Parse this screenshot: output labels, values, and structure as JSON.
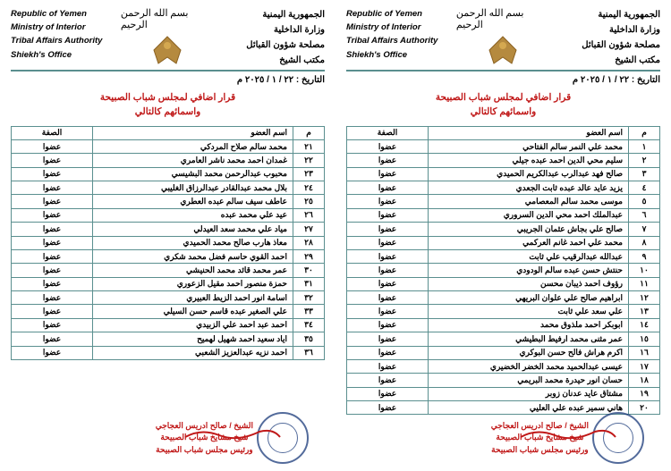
{
  "header_en": {
    "line1": "Republic of Yemen",
    "line2": "Ministry of Interior",
    "line3": "Tribal Affairs Authority",
    "line4": "Shiekh's Office"
  },
  "header_ar": {
    "line1": "الجمهورية اليمنية",
    "line2": "وزارة الداخلية",
    "line3": "مصلحة شؤون القبائل",
    "line4": "مكتب الشيخ"
  },
  "bismillah": "بسم الله الرحمن الرحيم",
  "date": "التاريخ : ٢٢ / ١ / ٢٠٢٥ م",
  "title_line1": "قرار اضافي لمجلس شباب الصبيحة",
  "title_line2": "واسمائهم كالتالي",
  "columns": {
    "num": "م",
    "name": "اسم العضو",
    "role": "الصفة"
  },
  "role_member": "عضوا",
  "signature": {
    "line1": "الشيخ / صالح ادريس العجاجي",
    "line2": "شيخ مشايخ شباب الصبيحة",
    "line3": "ورئيس مجلس شباب الصبيحة"
  },
  "right_page_rows": [
    {
      "n": "١",
      "name": "محمد علي النمر سالم الفتاحي"
    },
    {
      "n": "٢",
      "name": "سليم محي الدين احمد عبده جيلي"
    },
    {
      "n": "٣",
      "name": "صالح فهد عبدالرب عبدالكريم الحميدي"
    },
    {
      "n": "٤",
      "name": "يزيد عايد عالد عبده ثابت الجعدي"
    },
    {
      "n": "٥",
      "name": "موسى محمد سالم المعصامي"
    },
    {
      "n": "٦",
      "name": "عبدالملك احمد محي الدين السروري"
    },
    {
      "n": "٧",
      "name": "صالح علي بجاش عثمان الجريبي"
    },
    {
      "n": "٨",
      "name": "محمد علي احمد غانم العركمي"
    },
    {
      "n": "٩",
      "name": "عبدالله عبدالرقيب علي ثابت"
    },
    {
      "n": "١٠",
      "name": "حنتش حسن عبده سالم الودودي"
    },
    {
      "n": "١١",
      "name": "رؤوف احمد ذيبان محسن"
    },
    {
      "n": "١٢",
      "name": "ابراهيم صالح علي علوان البريهي"
    },
    {
      "n": "١٣",
      "name": "علي سعد علي ثابت"
    },
    {
      "n": "١٤",
      "name": "ابوبكر احمد ملذوق محمد"
    },
    {
      "n": "١٥",
      "name": "عمر مثنى محمد ارفيط البطيشي"
    },
    {
      "n": "١٦",
      "name": "اكرم هراش فالح حسن البوكري"
    },
    {
      "n": "١٧",
      "name": "عيسى عبدالحميد محمد الخضر الخضيري"
    },
    {
      "n": "١٨",
      "name": "حسان انور حيدرة محمد البريمي"
    },
    {
      "n": "١٩",
      "name": "مشتاق عايد عدنان زوبر"
    },
    {
      "n": "٢٠",
      "name": "هاني سمير عبده علي العليي"
    }
  ],
  "left_page_rows": [
    {
      "n": "٢١",
      "name": "محمد سالم صلاح المردكي"
    },
    {
      "n": "٢٢",
      "name": "غمدان احمد محمد ناشر العامري"
    },
    {
      "n": "٢٣",
      "name": "محبوب عبدالرحمن محمد البشيسي"
    },
    {
      "n": "٢٤",
      "name": "بلال محمد عبدالقادر عبدالرزاق الغليبي"
    },
    {
      "n": "٢٥",
      "name": "عاطف سيف سالم عبده العطري"
    },
    {
      "n": "٢٦",
      "name": "عيد علي محمد عبده"
    },
    {
      "n": "٢٧",
      "name": "مياد علي محمد سعد العيدلي"
    },
    {
      "n": "٢٨",
      "name": "معاذ هارب صالح محمد الحميدي"
    },
    {
      "n": "٢٩",
      "name": "احمد القوي حاسم فضل محمد شكري"
    },
    {
      "n": "٣٠",
      "name": "عمر محمد قائد محمد الحنيشي"
    },
    {
      "n": "٣١",
      "name": "حمزة منصور احمد مقيل الزعوري"
    },
    {
      "n": "٣٢",
      "name": "اسامة انور احمد الزيط العبيري"
    },
    {
      "n": "٣٣",
      "name": "علي الصغير عبده قاسم حسن السيلي"
    },
    {
      "n": "٣٤",
      "name": "احمد عبد احمد علي الزبيدي"
    },
    {
      "n": "٣٥",
      "name": "اياد سعيد احمد شهيل لهميح"
    },
    {
      "n": "٣٦",
      "name": "احمد نزيه عبدالعزيز الشعبي"
    }
  ]
}
